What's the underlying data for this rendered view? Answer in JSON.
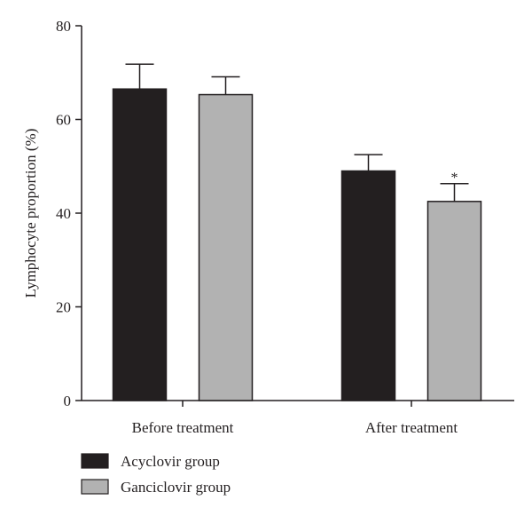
{
  "chart_data": {
    "type": "bar",
    "categories": [
      "Before treatment",
      "After treatment"
    ],
    "series": [
      {
        "name": "Acyclovir group",
        "values": [
          66.5,
          49
        ],
        "errors": [
          5.3,
          3.5
        ],
        "color": "#231f20"
      },
      {
        "name": "Ganciclovir group",
        "values": [
          65.3,
          42.5
        ],
        "errors": [
          3.8,
          3.8
        ],
        "color": "#b2b2b2"
      }
    ],
    "significance": [
      {
        "category": 1,
        "series": 1,
        "label": "*"
      }
    ],
    "ylabel": "Lymphocyte proportion (%)",
    "xlabel": "",
    "ylim": [
      0,
      80
    ],
    "yticks": [
      0,
      20,
      40,
      60,
      80
    ],
    "grid": false,
    "legend": "bottom-left"
  }
}
